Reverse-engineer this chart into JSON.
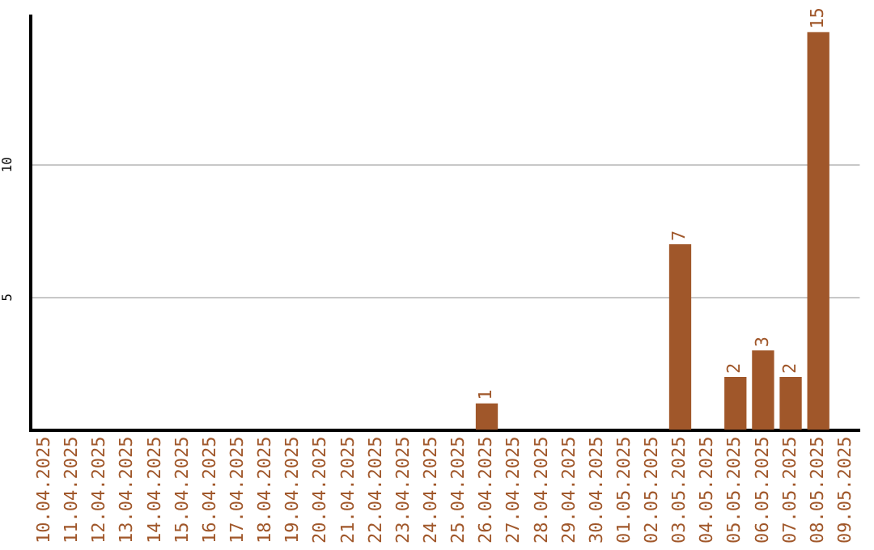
{
  "chart_data": {
    "type": "bar",
    "categories": [
      "10.04.2025",
      "11.04.2025",
      "12.04.2025",
      "13.04.2025",
      "14.04.2025",
      "15.04.2025",
      "16.04.2025",
      "17.04.2025",
      "18.04.2025",
      "19.04.2025",
      "20.04.2025",
      "21.04.2025",
      "22.04.2025",
      "23.04.2025",
      "24.04.2025",
      "25.04.2025",
      "26.04.2025",
      "27.04.2025",
      "28.04.2025",
      "29.04.2025",
      "30.04.2025",
      "01.05.2025",
      "02.05.2025",
      "03.05.2025",
      "04.05.2025",
      "05.05.2025",
      "06.05.2025",
      "07.05.2025",
      "08.05.2025",
      "09.05.2025"
    ],
    "values": [
      0,
      0,
      0,
      0,
      0,
      0,
      0,
      0,
      0,
      0,
      0,
      0,
      0,
      0,
      0,
      0,
      1,
      0,
      0,
      0,
      0,
      0,
      0,
      7,
      0,
      2,
      3,
      2,
      15,
      0
    ],
    "value_labels": [
      null,
      null,
      null,
      null,
      null,
      null,
      null,
      null,
      null,
      null,
      null,
      null,
      null,
      null,
      null,
      null,
      "1",
      null,
      null,
      null,
      null,
      null,
      null,
      "7",
      null,
      "2",
      "3",
      "2",
      "15",
      null
    ],
    "color": "#a0572a",
    "ylim": [
      0,
      15.6
    ],
    "yticks": [
      5,
      10
    ],
    "grid": "y",
    "legend": false
  }
}
